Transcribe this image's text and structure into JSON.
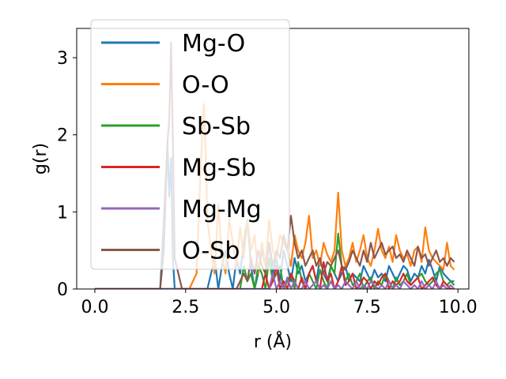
{
  "chart_data": {
    "type": "line",
    "title": "",
    "xlabel": "r (Å)",
    "ylabel": "g(r)",
    "xlim": [
      -0.5,
      10.3
    ],
    "ylim": [
      0,
      3.38
    ],
    "xticks": [
      0.0,
      2.5,
      5.0,
      7.5,
      10.0
    ],
    "xtick_labels": [
      "0.0",
      "2.5",
      "5.0",
      "7.5",
      "10.0"
    ],
    "yticks": [
      0,
      1,
      2,
      3
    ],
    "ytick_labels": [
      "0",
      "1",
      "2",
      "3"
    ],
    "grid": false,
    "legend_position": "top-left",
    "x": [
      0.0,
      0.5,
      1.0,
      1.5,
      1.8,
      1.9,
      2.0,
      2.05,
      2.1,
      2.15,
      2.2,
      2.4,
      2.6,
      2.8,
      2.9,
      3.0,
      3.05,
      3.1,
      3.2,
      3.3,
      3.4,
      3.5,
      3.6,
      3.7,
      3.8,
      3.9,
      4.0,
      4.1,
      4.2,
      4.3,
      4.4,
      4.5,
      4.6,
      4.7,
      4.8,
      4.9,
      5.0,
      5.1,
      5.2,
      5.3,
      5.4,
      5.5,
      5.6,
      5.7,
      5.8,
      5.9,
      6.0,
      6.1,
      6.2,
      6.3,
      6.4,
      6.5,
      6.6,
      6.7,
      6.8,
      6.9,
      7.0,
      7.1,
      7.2,
      7.3,
      7.4,
      7.5,
      7.6,
      7.7,
      7.8,
      7.9,
      8.0,
      8.1,
      8.2,
      8.3,
      8.4,
      8.5,
      8.6,
      8.7,
      8.8,
      8.9,
      9.0,
      9.1,
      9.2,
      9.3,
      9.4,
      9.5,
      9.6,
      9.7,
      9.8,
      9.9
    ],
    "series": [
      {
        "name": "Mg-O",
        "color": "#1f77b4",
        "values": [
          0,
          0,
          0,
          0,
          0,
          0.9,
          1.9,
          1.2,
          1.7,
          0.4,
          0,
          0,
          0,
          0,
          0,
          0,
          0,
          0,
          0.2,
          0.4,
          0,
          0.3,
          0.5,
          0.2,
          0,
          0.4,
          0.2,
          0.6,
          0.9,
          0.3,
          0,
          0.2,
          0.5,
          0.3,
          0.6,
          0.2,
          0.4,
          0.1,
          0.5,
          0.3,
          0.1,
          0.4,
          0.2,
          0.3,
          0.1,
          0.2,
          0.3,
          0.1,
          0.4,
          0.2,
          0.1,
          0.3,
          0.2,
          0.1,
          0.2,
          0.3,
          0.1,
          0.2,
          0.15,
          0.1,
          0.3,
          0.2,
          0.1,
          0.25,
          0.15,
          0.2,
          0.1,
          0.3,
          0.2,
          0.1,
          0.2,
          0.3,
          0.25,
          0.1,
          0.2,
          0.15,
          0.3,
          0.2,
          0.38,
          0.25,
          0.1,
          0.3,
          0.2,
          0.15,
          0.1,
          0.1
        ]
      },
      {
        "name": "O-O",
        "color": "#ff7f0e",
        "values": [
          0,
          0,
          0,
          0,
          0,
          0,
          0,
          0,
          0,
          0,
          0,
          0,
          0,
          0.2,
          1.4,
          2.4,
          1.8,
          0.9,
          0.5,
          0.2,
          1.1,
          0.4,
          0.2,
          0.9,
          0.6,
          0.3,
          0.8,
          0.4,
          0.9,
          0.5,
          0.7,
          0.2,
          0.6,
          0.3,
          0.9,
          0.5,
          0.4,
          0.7,
          0.6,
          0.5,
          0.3,
          0.7,
          0.5,
          0.4,
          0.6,
          0.95,
          0.4,
          0.5,
          0.3,
          0.6,
          0.45,
          0.35,
          0.5,
          1.25,
          0.5,
          0.3,
          0.4,
          0.6,
          0.35,
          0.5,
          0.7,
          0.4,
          0.3,
          0.5,
          0.78,
          0.5,
          0.4,
          0.55,
          0.35,
          0.7,
          0.5,
          0.4,
          0.45,
          0.3,
          0.5,
          0.55,
          0.35,
          0.8,
          0.5,
          0.4,
          0.35,
          0.3,
          0.25,
          0.6,
          0.3,
          0.25
        ]
      },
      {
        "name": "Sb-Sb",
        "color": "#2ca02c",
        "values": [
          0,
          0,
          0,
          0,
          0,
          0,
          0,
          0,
          0,
          0,
          0,
          0,
          0,
          0,
          0,
          0,
          0,
          0,
          0,
          0,
          0,
          0,
          0,
          0,
          0,
          0,
          0,
          0.3,
          0.1,
          0.2,
          0,
          0.3,
          0.2,
          0,
          0.4,
          0.1,
          0.2,
          0.3,
          0,
          0.1,
          0.2,
          0,
          0.35,
          0.1,
          0,
          0.2,
          0.1,
          0,
          0.25,
          0.1,
          0,
          0.3,
          0.2,
          0.72,
          0.3,
          0.1,
          0.2,
          0.05,
          0.1,
          0.2,
          0,
          0.1,
          0.15,
          0,
          0.1,
          0.05,
          0.2,
          0.1,
          0,
          0.15,
          0.05,
          0.1,
          0.2,
          0.05,
          0.1,
          0.15,
          0.2,
          0.1,
          0.05,
          0.1,
          0.2,
          0.25,
          0.1,
          0.05,
          0.1,
          0.05
        ]
      },
      {
        "name": "Mg-Sb",
        "color": "#d62728",
        "values": [
          0,
          0,
          0,
          0,
          0,
          0,
          0,
          0,
          0,
          0,
          0,
          0,
          0,
          0,
          0,
          0,
          0,
          0,
          0,
          0,
          0,
          0,
          0,
          0,
          0,
          0,
          0,
          0,
          0,
          0,
          0,
          0,
          0,
          0.2,
          0,
          0.1,
          0.3,
          0,
          0.1,
          0,
          0.2,
          0.1,
          0,
          0.15,
          0,
          0.2,
          0.3,
          0.1,
          0,
          0.35,
          0.1,
          0.2,
          0,
          0.1,
          0.3,
          0.05,
          0.1,
          0.2,
          0,
          0.05,
          0.15,
          0.1,
          0,
          0.1,
          0.05,
          0.15,
          0.2,
          0,
          0.1,
          0.05,
          0.1,
          0.2,
          0.1,
          0.05,
          0.1,
          0.15,
          0,
          0.05,
          0.1,
          0.15,
          0.05,
          0,
          0.1,
          0.05,
          0,
          0
        ]
      },
      {
        "name": "Mg-Mg",
        "color": "#9467bd",
        "values": [
          0,
          0,
          0,
          0,
          0,
          0,
          0,
          0,
          0,
          0,
          0,
          0,
          0,
          0,
          0,
          0,
          0,
          0,
          0,
          0,
          0,
          0,
          0,
          0,
          0,
          0,
          0,
          0,
          0,
          0,
          0,
          0,
          0,
          0,
          0,
          0.2,
          0,
          0.1,
          0,
          0.15,
          0,
          0.1,
          0,
          0,
          0.1,
          0,
          0.05,
          0.1,
          0,
          0.05,
          0,
          0.1,
          0,
          0.05,
          0,
          0.1,
          0.05,
          0,
          0.1,
          0,
          0.05,
          0,
          0.1,
          0.05,
          0,
          0.05,
          0,
          0.1,
          0,
          0.05,
          0,
          0.1,
          0.05,
          0,
          0.05,
          0,
          0.1,
          0,
          0.05,
          0,
          0.1,
          0,
          0.05,
          0,
          0.05,
          0
        ]
      },
      {
        "name": "O-Sb",
        "color": "#8c564b",
        "values": [
          0,
          0,
          0,
          0,
          0,
          0.5,
          1.9,
          2.2,
          3.2,
          1.9,
          0.4,
          0,
          0,
          0,
          0,
          0,
          0,
          0,
          0,
          0,
          0,
          0,
          0,
          0,
          0,
          0,
          0.1,
          0.2,
          0.1,
          0.4,
          0.2,
          0.5,
          0.3,
          0.2,
          0.6,
          0.3,
          0.5,
          0.4,
          0.7,
          0.5,
          0.95,
          0.6,
          0.4,
          0.5,
          0.3,
          0.4,
          0.5,
          0.3,
          0.4,
          0.2,
          0.35,
          0.3,
          0.4,
          0.5,
          0.3,
          0.25,
          0.35,
          0.5,
          0.4,
          0.3,
          0.5,
          0.35,
          0.6,
          0.4,
          0.5,
          0.6,
          0.45,
          0.5,
          0.55,
          0.4,
          0.45,
          0.35,
          0.5,
          0.4,
          0.3,
          0.55,
          0.4,
          0.45,
          0.3,
          0.4,
          0.5,
          0.35,
          0.4,
          0.3,
          0.4,
          0.35
        ]
      }
    ]
  }
}
